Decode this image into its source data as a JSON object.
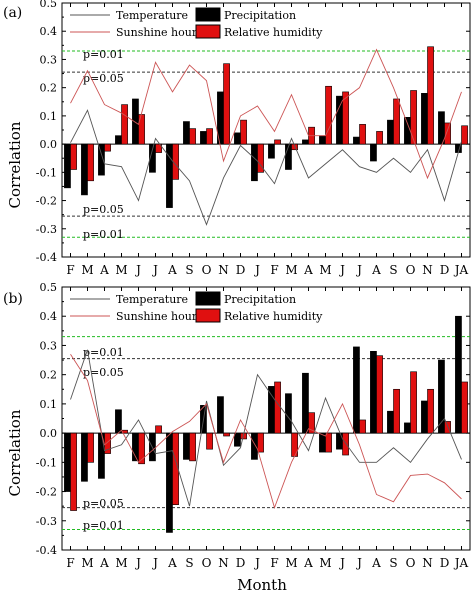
{
  "figure": {
    "xlabel": "Month",
    "ylabel": "Correlation"
  },
  "months": [
    "F",
    "M",
    "A",
    "M",
    "J",
    "J",
    "A",
    "S",
    "O",
    "N",
    "D",
    "J",
    "F",
    "M",
    "A",
    "M",
    "J",
    "J",
    "A",
    "S",
    "O",
    "N",
    "D",
    "JA"
  ],
  "colors": {
    "precipitation": "#000000",
    "relative_humidity": "#e01010",
    "temperature": "#555555",
    "sunshine": "#cc5555",
    "sig_001": "#22bb22",
    "sig_005": "#333333"
  },
  "chart_data": [
    {
      "type": "bar",
      "panel_label": "(a)",
      "ylim": [
        -0.4,
        0.5
      ],
      "yticks": [
        "0.5",
        "0.4",
        "0.3",
        "0.2",
        "0.1",
        "0.0",
        "-0.1",
        "-0.2",
        "-0.3",
        "-0.4"
      ],
      "ylabel": "Correlation",
      "grid": false,
      "legend_position": "top",
      "legend": [
        "Temperature",
        "Sunshine hours",
        "Precipitation",
        "Relative humidity"
      ],
      "annotations": [
        "p=0.01",
        "p=0.05",
        "p=0.05",
        "p=0.01"
      ],
      "thresholds": [
        0.33,
        0.255,
        -0.255,
        -0.33
      ],
      "series": [
        {
          "name": "Precipitation",
          "kind": "bar",
          "values": [
            -0.155,
            -0.18,
            -0.11,
            0.03,
            0.16,
            -0.1,
            -0.225,
            0.08,
            0.045,
            0.185,
            0.04,
            -0.13,
            -0.05,
            -0.09,
            0.015,
            0.03,
            0.17,
            0.025,
            -0.06,
            0.085,
            0.095,
            0.18,
            0.115,
            -0.03
          ]
        },
        {
          "name": "Relative humidity",
          "kind": "bar",
          "values": [
            -0.09,
            -0.13,
            -0.025,
            0.14,
            0.105,
            -0.03,
            -0.125,
            0.055,
            0.055,
            0.285,
            0.085,
            -0.1,
            0.015,
            -0.02,
            0.06,
            0.205,
            0.185,
            0.07,
            0.045,
            0.16,
            0.19,
            0.345,
            0.075,
            0.065
          ]
        },
        {
          "name": "Temperature",
          "kind": "line",
          "values": [
            0.005,
            0.12,
            -0.07,
            -0.08,
            -0.2,
            0.02,
            -0.06,
            -0.13,
            -0.285,
            -0.12,
            -0.005,
            -0.06,
            -0.14,
            0.02,
            -0.12,
            -0.07,
            -0.02,
            -0.08,
            -0.1,
            -0.05,
            -0.1,
            -0.02,
            -0.2,
            0.01
          ]
        },
        {
          "name": "Sunshine hours",
          "kind": "line",
          "values": [
            0.145,
            0.26,
            0.14,
            0.11,
            0.07,
            0.29,
            0.185,
            0.28,
            0.225,
            -0.06,
            0.1,
            0.135,
            0.045,
            0.175,
            0.03,
            0.03,
            0.155,
            0.2,
            0.335,
            0.2,
            0.045,
            -0.12,
            0.02,
            0.185
          ]
        }
      ]
    },
    {
      "type": "bar",
      "panel_label": "(b)",
      "ylim": [
        -0.4,
        0.5
      ],
      "yticks": [
        "0.5",
        "0.4",
        "0.3",
        "0.2",
        "0.1",
        "0.0",
        "-0.1",
        "-0.2",
        "-0.3",
        "-0.4"
      ],
      "ylabel": "Correlation",
      "xlabel": "Month",
      "grid": false,
      "legend_position": "top",
      "legend": [
        "Temperature",
        "Sunshine hours",
        "Precipitation",
        "Relative humidity"
      ],
      "annotations": [
        "p=0.01",
        "p=0.05",
        "p=0.05",
        "p=0.01"
      ],
      "thresholds": [
        0.33,
        0.255,
        -0.255,
        -0.33
      ],
      "series": [
        {
          "name": "Precipitation",
          "kind": "bar",
          "values": [
            -0.2,
            -0.165,
            -0.155,
            0.08,
            -0.095,
            -0.095,
            -0.34,
            -0.09,
            0.095,
            0.125,
            -0.045,
            -0.09,
            0.16,
            0.135,
            0.205,
            -0.065,
            -0.055,
            0.295,
            0.28,
            0.075,
            0.035,
            0.11,
            0.25,
            0.4
          ]
        },
        {
          "name": "Relative humidity",
          "kind": "bar",
          "values": [
            -0.265,
            -0.1,
            -0.07,
            0.01,
            -0.105,
            0.025,
            -0.245,
            -0.095,
            -0.055,
            -0.01,
            -0.02,
            -0.065,
            0.175,
            -0.08,
            0.07,
            -0.065,
            -0.075,
            0.045,
            0.265,
            0.15,
            0.21,
            0.15,
            0.04,
            0.175
          ]
        },
        {
          "name": "Temperature",
          "kind": "line",
          "values": [
            0.115,
            0.285,
            -0.06,
            -0.04,
            0.045,
            -0.07,
            -0.06,
            -0.25,
            0.11,
            -0.11,
            -0.05,
            0.2,
            0.115,
            0.04,
            -0.06,
            0.12,
            -0.02,
            -0.1,
            -0.1,
            -0.05,
            -0.1,
            -0.02,
            0.05,
            -0.09
          ]
        },
        {
          "name": "Sunshine hours",
          "kind": "line",
          "values": [
            0.27,
            0.18,
            -0.04,
            0.01,
            -0.1,
            -0.05,
            0.005,
            0.04,
            0.1,
            -0.1,
            0.045,
            -0.055,
            -0.255,
            -0.1,
            0.015,
            -0.01,
            0.1,
            -0.04,
            -0.21,
            -0.235,
            -0.145,
            -0.14,
            -0.17,
            -0.225
          ]
        }
      ]
    }
  ]
}
